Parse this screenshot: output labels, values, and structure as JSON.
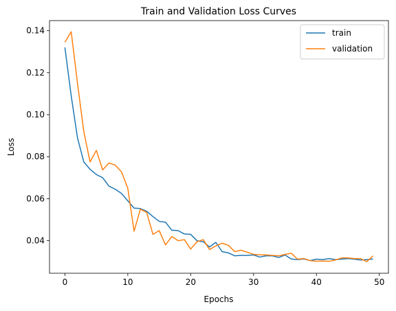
{
  "chart_data": {
    "type": "line",
    "title": "Train and Validation Loss Curves",
    "xlabel": "Epochs",
    "ylabel": "Loss",
    "xlim": [
      -2.45,
      51.45
    ],
    "ylim": [
      0.0245,
      0.1448
    ],
    "xticks": [
      0,
      10,
      20,
      30,
      40,
      50
    ],
    "yticks": [
      0.04,
      0.06,
      0.08,
      0.1,
      0.12,
      0.14
    ],
    "xtick_labels": [
      "0",
      "10",
      "20",
      "30",
      "40",
      "50"
    ],
    "ytick_labels": [
      "0.04",
      "0.06",
      "0.08",
      "0.10",
      "0.12",
      "0.14"
    ],
    "grid": false,
    "legend": "top-right",
    "x": [
      0,
      1,
      2,
      3,
      4,
      5,
      6,
      7,
      8,
      9,
      10,
      11,
      12,
      13,
      14,
      15,
      16,
      17,
      18,
      19,
      20,
      21,
      22,
      23,
      24,
      25,
      26,
      27,
      28,
      29,
      30,
      31,
      32,
      33,
      34,
      35,
      36,
      37,
      38,
      39,
      40,
      41,
      42,
      43,
      44,
      45,
      46,
      47,
      48,
      49
    ],
    "series": [
      {
        "name": "train",
        "color": "#1f77b4",
        "values": [
          0.132,
          0.109,
          0.089,
          0.0775,
          0.074,
          0.0715,
          0.07,
          0.066,
          0.0645,
          0.0625,
          0.059,
          0.0555,
          0.0553,
          0.054,
          0.0515,
          0.0492,
          0.0488,
          0.045,
          0.0448,
          0.0432,
          0.043,
          0.04,
          0.0395,
          0.037,
          0.0392,
          0.0348,
          0.0342,
          0.0328,
          0.033,
          0.033,
          0.0332,
          0.0322,
          0.0328,
          0.0328,
          0.032,
          0.0332,
          0.0313,
          0.031,
          0.0313,
          0.0305,
          0.0312,
          0.031,
          0.0315,
          0.031,
          0.0312,
          0.0315,
          0.0312,
          0.0308,
          0.031,
          0.0313
        ]
      },
      {
        "name": "validation",
        "color": "#ff7f0e",
        "values": [
          0.1345,
          0.1395,
          0.115,
          0.092,
          0.0775,
          0.083,
          0.0737,
          0.077,
          0.076,
          0.0728,
          0.065,
          0.0445,
          0.055,
          0.0535,
          0.043,
          0.0448,
          0.038,
          0.042,
          0.04,
          0.0405,
          0.036,
          0.0395,
          0.0405,
          0.0358,
          0.0375,
          0.0388,
          0.0378,
          0.0348,
          0.0355,
          0.0345,
          0.0335,
          0.0333,
          0.0332,
          0.033,
          0.0328,
          0.0335,
          0.034,
          0.0312,
          0.0315,
          0.0305,
          0.0302,
          0.0303,
          0.0302,
          0.0308,
          0.0318,
          0.0318,
          0.0315,
          0.0315,
          0.03,
          0.0328
        ]
      }
    ]
  }
}
